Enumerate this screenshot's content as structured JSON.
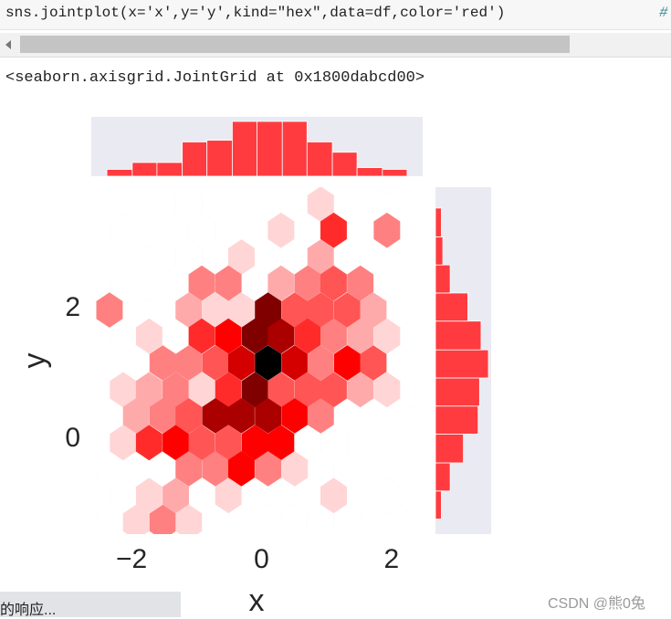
{
  "code": "sns.jointplot(x='x',y='y',kind=\"hex\",data=df,color='red')",
  "code_comment": "#",
  "output": "<seaborn.axisgrid.JointGrid at 0x1800dabcd00>",
  "status": "的响应...",
  "watermark": "CSDN @熊0兔",
  "chart_data": [
    {
      "type": "hexbin",
      "xlabel": "x",
      "ylabel": "y",
      "color": "red",
      "xlim": [
        -2.62,
        2.48
      ],
      "ylim": [
        -1.45,
        3.86
      ],
      "xticks": [
        {
          "value": -2,
          "label": "−2"
        },
        0,
        2
      ],
      "yticks": [
        0,
        2
      ],
      "x": [
        0.91,
        0.3,
        1.11,
        1.93,
        -0.31,
        0.91,
        -0.92,
        -0.51,
        0.3,
        0.71,
        1.11,
        1.52,
        -2.34,
        -1.12,
        -0.71,
        -0.31,
        0.1,
        0.51,
        0.91,
        1.32,
        1.72,
        -1.73,
        -0.92,
        -0.51,
        -0.1,
        0.3,
        0.71,
        1.11,
        1.52,
        1.93,
        -1.52,
        -1.12,
        -0.71,
        -0.31,
        0.1,
        0.51,
        0.91,
        1.32,
        1.72,
        -2.13,
        -1.73,
        -1.32,
        -0.92,
        -0.51,
        -0.1,
        0.3,
        0.71,
        1.11,
        1.52,
        1.93,
        -1.93,
        -1.52,
        -1.12,
        -0.71,
        -0.31,
        0.1,
        0.51,
        0.91,
        -2.13,
        -1.73,
        -1.32,
        -0.92,
        -0.51,
        -0.1,
        0.3,
        -1.12,
        -0.71,
        -0.31,
        0.1,
        0.51,
        -1.73,
        -1.32,
        -0.51,
        1.11,
        -1.93,
        -1.52,
        -1.12
      ],
      "y": [
        3.6,
        3.2,
        3.2,
        3.2,
        2.79,
        2.79,
        2.39,
        2.39,
        2.39,
        2.39,
        2.39,
        2.39,
        1.98,
        1.98,
        1.98,
        1.98,
        1.98,
        1.98,
        1.98,
        1.98,
        1.98,
        1.58,
        1.58,
        1.58,
        1.58,
        1.58,
        1.58,
        1.58,
        1.58,
        1.58,
        1.17,
        1.17,
        1.17,
        1.17,
        1.17,
        1.17,
        1.17,
        1.17,
        1.17,
        0.76,
        0.76,
        0.76,
        0.76,
        0.76,
        0.76,
        0.76,
        0.76,
        0.76,
        0.76,
        0.76,
        0.36,
        0.36,
        0.36,
        0.36,
        0.36,
        0.36,
        0.36,
        0.36,
        -0.05,
        -0.05,
        -0.05,
        -0.05,
        -0.05,
        -0.05,
        -0.05,
        -0.45,
        -0.45,
        -0.45,
        -0.45,
        -0.45,
        -0.86,
        -0.86,
        -0.86,
        -0.86,
        -1.27,
        -1.27,
        -1.27
      ],
      "counts": [
        1,
        1,
        5,
        3,
        1,
        2,
        3,
        3,
        2,
        3,
        4,
        3,
        3,
        2,
        1,
        1,
        9,
        4,
        4,
        4,
        2,
        1,
        5,
        6,
        9,
        8,
        5,
        3,
        2,
        1,
        3,
        3,
        4,
        7,
        12,
        7,
        3,
        6,
        4,
        1,
        2,
        3,
        1,
        5,
        9,
        4,
        4,
        4,
        2,
        1,
        2,
        3,
        4,
        8,
        8,
        8,
        6,
        3,
        1,
        5,
        6,
        4,
        4,
        6,
        6,
        3,
        3,
        6,
        3,
        1,
        1,
        2,
        1,
        1,
        1,
        3,
        1
      ]
    },
    {
      "type": "histogram",
      "orientation": "vertical",
      "color": "#ff3b3f",
      "bins": [
        -2.38,
        -1.99,
        -1.61,
        -1.22,
        -0.84,
        -0.45,
        -0.07,
        0.32,
        0.7,
        1.09,
        1.47,
        1.86,
        2.24
      ],
      "counts": [
        4,
        8,
        8,
        20,
        21,
        32,
        32,
        32,
        20,
        14,
        5,
        4
      ]
    },
    {
      "type": "histogram",
      "orientation": "horizontal",
      "color": "#ff3b3f",
      "bins": [
        -1.22,
        -0.79,
        -0.36,
        0.08,
        0.51,
        0.94,
        1.37,
        1.81,
        2.24,
        2.67,
        3.1,
        3.54
      ],
      "counts": [
        4,
        10,
        19,
        29,
        30,
        36,
        31,
        22,
        10,
        5,
        4
      ]
    }
  ]
}
